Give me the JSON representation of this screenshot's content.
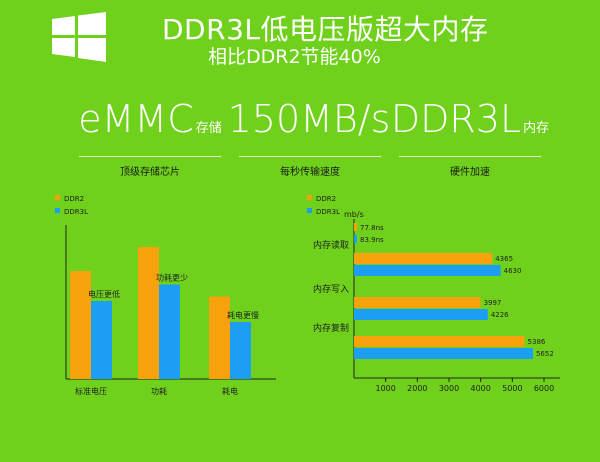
{
  "header": {
    "title": "DDR3L低电压版超大内存",
    "subtitle": "相比DDR2节能40%"
  },
  "features": [
    {
      "big": "eMMC",
      "small": "存储",
      "caption": "顶级存储芯片"
    },
    {
      "big": "150MB/s",
      "small": "",
      "caption": "每秒传输速度"
    },
    {
      "big": "DDR3L",
      "small": "内存",
      "caption": "硬件加速"
    }
  ],
  "colors": {
    "background": "#6fd11b",
    "ddr2": "#f7a10c",
    "ddr3l": "#1c9ff2"
  },
  "chart_data": [
    {
      "type": "bar",
      "categories": [
        "标准电压",
        "功耗",
        "耗电"
      ],
      "series": [
        {
          "name": "DDR2",
          "values": [
            72,
            88,
            55
          ]
        },
        {
          "name": "DDR3L",
          "values": [
            52,
            63,
            38
          ]
        }
      ],
      "annotations": [
        "电压更低",
        "功耗更少",
        "耗电更慢"
      ],
      "ylim": [
        0,
        100
      ],
      "legend": "top-left"
    },
    {
      "type": "bar",
      "orientation": "horizontal",
      "categories": [
        "内存读取",
        "内存写入",
        "内存复制"
      ],
      "series": [
        {
          "name": "DDR2",
          "values": [
            4365,
            3997,
            5386
          ]
        },
        {
          "name": "DDR3L",
          "values": [
            4630,
            4226,
            5652
          ]
        }
      ],
      "legend_values": [
        "77.8ns",
        "83.9ns"
      ],
      "unit": "mb/s",
      "x_ticks": [
        "1000",
        "2000",
        "3000",
        "4000",
        "5000",
        "6000"
      ],
      "xlim": [
        0,
        6000
      ],
      "legend": "top-left"
    }
  ]
}
